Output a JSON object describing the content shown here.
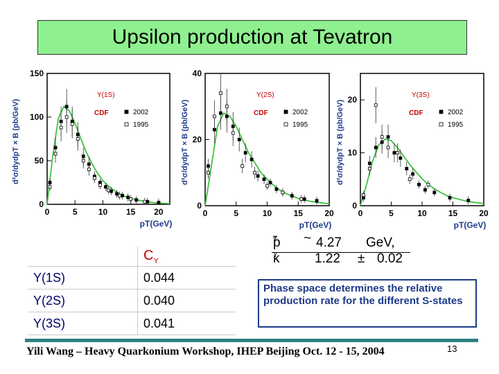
{
  "slide": {
    "title": "Upsilon production at Tevatron",
    "footer": "Yili Wang – Heavy Quarkonium Workshop, IHEP Beijing  Oct. 12 - 15,  2004",
    "page_number": "13"
  },
  "chart_data": [
    {
      "type": "scatter",
      "state": "Υ(1S)",
      "xlabel": "pT(GeV)",
      "ylabel": "d²σ/dydpT × B (pb/GeV)",
      "xlim": [
        0,
        22
      ],
      "ylim": [
        0,
        150
      ],
      "x_ticks": [
        "0",
        "5",
        "10",
        "15",
        "20"
      ],
      "y_ticks": [
        "0",
        "50",
        "100",
        "150"
      ],
      "legend": {
        "experiment": "CDF",
        "series": [
          "2002",
          "1995"
        ]
      },
      "series": [
        {
          "name": "2002",
          "marker": "filled-square",
          "x": [
            0.5,
            1.5,
            2.5,
            3.5,
            4.5,
            5.5,
            6.5,
            7.5,
            8.5,
            9.5,
            10.5,
            11.5,
            12.5,
            13.5,
            14.5,
            16.0,
            18.0,
            20.0
          ],
          "y": [
            25,
            65,
            95,
            112,
            95,
            80,
            55,
            46,
            32,
            25,
            20,
            15,
            12,
            10,
            8,
            5,
            3,
            2
          ]
        },
        {
          "name": "1995",
          "marker": "open-square",
          "x": [
            0.5,
            1.5,
            2.5,
            3.5,
            4.5,
            5.5,
            6.5,
            7.5,
            8.5,
            9.5,
            11.0,
            13.0,
            15.0,
            17.5
          ],
          "y": [
            20,
            58,
            88,
            100,
            92,
            75,
            50,
            40,
            30,
            22,
            16,
            10,
            6,
            3
          ]
        }
      ],
      "fit": {
        "name": "fit",
        "x": [
          0,
          1,
          2,
          3,
          4,
          5,
          6,
          7,
          8,
          9,
          10,
          11,
          12,
          13,
          14,
          15,
          16,
          17,
          18,
          19,
          20,
          21,
          22
        ],
        "y": [
          0,
          55,
          98,
          112,
          107,
          93,
          76,
          60,
          47,
          36,
          27,
          21,
          16,
          12,
          9,
          7,
          5,
          4,
          3,
          2,
          1.5,
          1.1,
          0.8
        ]
      }
    },
    {
      "type": "scatter",
      "state": "Υ(2S)",
      "xlabel": "pT(GeV)",
      "ylabel": "d²σ/dydpT × B (pb/GeV)",
      "xlim": [
        0,
        20
      ],
      "ylim": [
        0,
        40
      ],
      "x_ticks": [
        "0",
        "5",
        "10",
        "15",
        "20"
      ],
      "y_ticks": [
        "0",
        "20",
        "40"
      ],
      "legend": {
        "experiment": "CDF",
        "series": [
          "2002",
          "1995"
        ]
      },
      "series": [
        {
          "name": "2002",
          "marker": "filled-square",
          "x": [
            0.5,
            1.5,
            2.5,
            3.5,
            4.5,
            5.5,
            6.5,
            7.5,
            8.5,
            9.5,
            10.5,
            11.5,
            12.5,
            14.0,
            16.0,
            18.0
          ],
          "y": [
            12,
            23,
            28,
            27,
            24,
            20,
            16,
            14,
            9,
            8,
            7,
            5,
            4,
            3,
            2,
            1.5
          ]
        },
        {
          "name": "1995",
          "marker": "open-square",
          "x": [
            0.5,
            1.5,
            2.5,
            3.5,
            4.5,
            6.0,
            8.0,
            10.0,
            12.5,
            15.5
          ],
          "y": [
            10,
            27,
            34,
            30,
            22,
            12,
            10,
            6,
            4,
            2
          ]
        }
      ],
      "fit": {
        "name": "fit",
        "x": [
          0,
          1,
          2,
          3,
          4,
          5,
          6,
          7,
          8,
          9,
          10,
          11,
          12,
          13,
          14,
          15,
          16,
          17,
          18,
          19,
          20
        ],
        "y": [
          0,
          12,
          24,
          28,
          27,
          24,
          20,
          16,
          13,
          10,
          8,
          6.2,
          4.8,
          3.7,
          2.9,
          2.2,
          1.7,
          1.3,
          1,
          0.8,
          0.6
        ]
      }
    },
    {
      "type": "scatter",
      "state": "Υ(3S)",
      "xlabel": "pT(GeV)",
      "ylabel": "d²σ/dydpT × B (pb/GeV)",
      "xlim": [
        0,
        20
      ],
      "ylim": [
        0,
        25
      ],
      "x_ticks": [
        "0",
        "5",
        "10",
        "15",
        "20"
      ],
      "y_ticks": [
        "0",
        "10",
        "20"
      ],
      "legend": {
        "experiment": "CDF",
        "series": [
          "2002",
          "1995"
        ]
      },
      "series": [
        {
          "name": "2002",
          "marker": "filled-square",
          "x": [
            0.5,
            1.5,
            2.5,
            3.5,
            4.5,
            5.5,
            6.5,
            7.5,
            8.5,
            9.5,
            10.5,
            12.0,
            14.5,
            17.5
          ],
          "y": [
            1.5,
            8,
            11,
            12,
            13,
            10,
            9,
            7,
            6,
            4,
            3,
            2.5,
            1.5,
            1
          ]
        },
        {
          "name": "1995",
          "marker": "open-square",
          "x": [
            0.5,
            1.5,
            2.5,
            3.5,
            4.5,
            6.0,
            8.0,
            11.0
          ],
          "y": [
            2,
            7,
            19,
            13,
            11,
            10,
            5,
            4
          ]
        }
      ],
      "fit": {
        "name": "fit",
        "x": [
          0,
          1,
          2,
          3,
          4,
          5,
          6,
          7,
          8,
          9,
          10,
          11,
          12,
          13,
          14,
          15,
          16,
          17,
          18,
          19,
          20
        ],
        "y": [
          0,
          4,
          8.5,
          11.5,
          12.6,
          12.3,
          11,
          9.4,
          7.8,
          6.4,
          5.1,
          4,
          3.2,
          2.5,
          1.9,
          1.5,
          1.2,
          0.9,
          0.7,
          0.55,
          0.4
        ]
      }
    }
  ],
  "formula": {
    "p_sym": "p",
    "p_sub": "T",
    "p_subsub": "M",
    "tilde": "~",
    "p_value": "4.27",
    "p_unit": "GeV,",
    "k_sym": "κ",
    "k_sub": "Υ",
    "k_value": "1.22",
    "pm": "±",
    "k_err": "0.02"
  },
  "table": {
    "header": {
      "c_sym": "C",
      "c_sub": "Υ"
    },
    "rows": [
      {
        "state": "Y(1S)",
        "value": "0.044"
      },
      {
        "state": "Y(2S)",
        "value": "0.040"
      },
      {
        "state": "Y(3S)",
        "value": "0.041"
      }
    ]
  },
  "note": "Phase space determines the relative production rate for the different S-states",
  "colors": {
    "title_bg": "#8ff08f",
    "axis_label": "#1d3a8a",
    "state_label": "#c40000",
    "fit_line": "#40c040",
    "teal_bar": "#2e7f7f"
  }
}
